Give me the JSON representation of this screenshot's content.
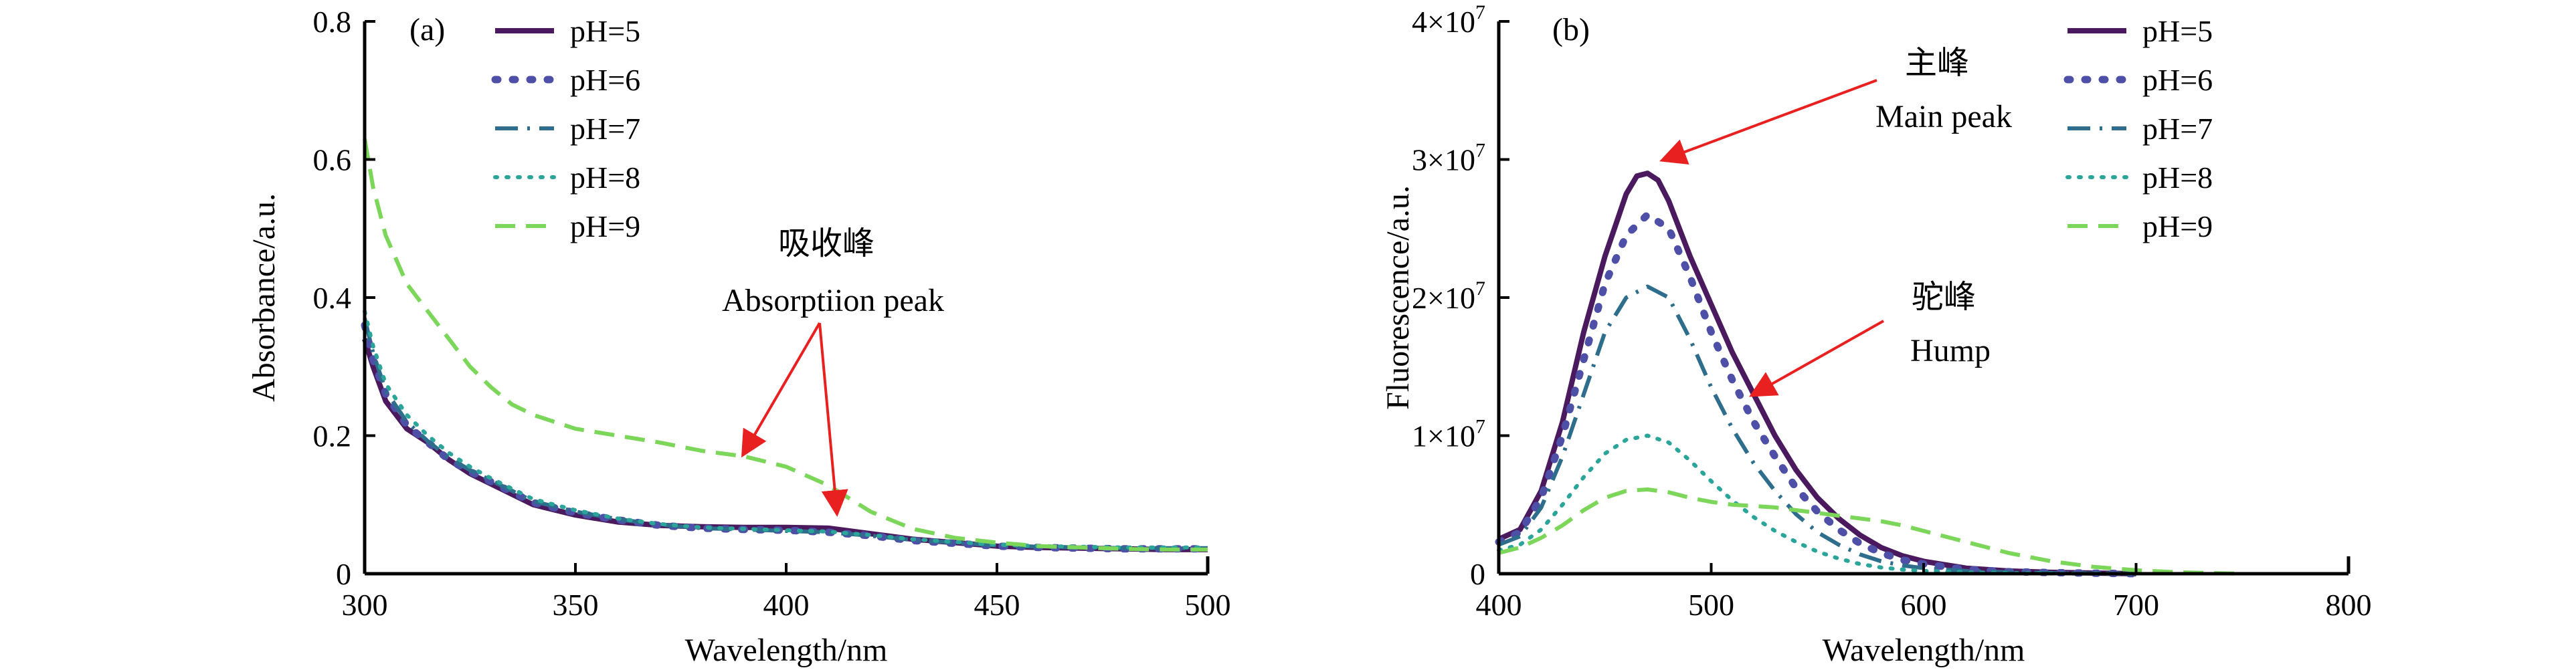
{
  "chart_data": [
    {
      "type": "line",
      "panel_label": "(a)",
      "xlabel": "Wavelength/nm",
      "ylabel": "Absorbance/a.u.",
      "xlim": [
        300,
        500
      ],
      "ylim": [
        0,
        0.8
      ],
      "xticks": [
        "300",
        "350",
        "400",
        "450",
        "500"
      ],
      "yticks": [
        "0",
        "0.2",
        "0.4",
        "0.6",
        "0.8"
      ],
      "legend_position": "top-right",
      "series": [
        {
          "name": "pH=5",
          "color": "#4b1a5e",
          "style": "solid",
          "x": [
            300,
            302,
            305,
            310,
            315,
            320,
            325,
            330,
            335,
            340,
            350,
            360,
            370,
            380,
            390,
            400,
            410,
            420,
            430,
            440,
            450,
            460,
            470,
            480,
            490,
            500
          ],
          "y": [
            0.34,
            0.3,
            0.25,
            0.21,
            0.19,
            0.165,
            0.145,
            0.13,
            0.115,
            0.1,
            0.085,
            0.075,
            0.07,
            0.068,
            0.067,
            0.067,
            0.066,
            0.058,
            0.05,
            0.045,
            0.04,
            0.038,
            0.037,
            0.036,
            0.035,
            0.035
          ]
        },
        {
          "name": "pH=6",
          "color": "#4e4fa6",
          "style": "dotted",
          "x": [
            300,
            302,
            305,
            310,
            315,
            320,
            325,
            330,
            335,
            340,
            350,
            360,
            370,
            380,
            390,
            400,
            410,
            420,
            430,
            440,
            450,
            460,
            470,
            480,
            490,
            500
          ],
          "y": [
            0.36,
            0.31,
            0.26,
            0.215,
            0.19,
            0.165,
            0.148,
            0.133,
            0.118,
            0.103,
            0.088,
            0.078,
            0.07,
            0.066,
            0.064,
            0.063,
            0.06,
            0.055,
            0.048,
            0.044,
            0.04,
            0.038,
            0.037,
            0.036,
            0.036,
            0.036
          ]
        },
        {
          "name": "pH=7",
          "color": "#2e6e8c",
          "style": "dashdot",
          "x": [
            300,
            302,
            305,
            310,
            315,
            320,
            325,
            330,
            335,
            340,
            350,
            360,
            370,
            380,
            390,
            400,
            410,
            420,
            430,
            440,
            450,
            460,
            470,
            480,
            490,
            500
          ],
          "y": [
            0.37,
            0.32,
            0.265,
            0.22,
            0.192,
            0.168,
            0.15,
            0.135,
            0.12,
            0.105,
            0.09,
            0.079,
            0.071,
            0.066,
            0.064,
            0.062,
            0.06,
            0.055,
            0.049,
            0.045,
            0.041,
            0.039,
            0.038,
            0.037,
            0.037,
            0.037
          ]
        },
        {
          "name": "pH=8",
          "color": "#2ba59a",
          "style": "dotted-fine",
          "x": [
            300,
            302,
            305,
            310,
            315,
            320,
            325,
            330,
            335,
            340,
            350,
            360,
            370,
            380,
            390,
            400,
            410,
            420,
            430,
            440,
            450,
            460,
            470,
            480,
            490,
            500
          ],
          "y": [
            0.38,
            0.33,
            0.275,
            0.23,
            0.2,
            0.175,
            0.155,
            0.138,
            0.123,
            0.108,
            0.092,
            0.08,
            0.072,
            0.067,
            0.065,
            0.063,
            0.061,
            0.056,
            0.05,
            0.046,
            0.042,
            0.04,
            0.039,
            0.038,
            0.038,
            0.038
          ]
        },
        {
          "name": "pH=9",
          "color": "#7bd65a",
          "style": "dashed",
          "x": [
            300,
            302,
            305,
            310,
            315,
            320,
            325,
            330,
            335,
            340,
            350,
            360,
            370,
            380,
            390,
            400,
            410,
            420,
            430,
            440,
            450,
            460,
            470,
            480,
            490,
            500
          ],
          "y": [
            0.63,
            0.56,
            0.49,
            0.42,
            0.38,
            0.34,
            0.3,
            0.27,
            0.245,
            0.23,
            0.21,
            0.2,
            0.19,
            0.178,
            0.17,
            0.155,
            0.128,
            0.09,
            0.065,
            0.052,
            0.045,
            0.04,
            0.038,
            0.036,
            0.035,
            0.035
          ]
        }
      ],
      "annotations": [
        {
          "cn": "吸收峰",
          "en": "Absorptiion peak",
          "targets": [
            [
              390,
              0.175
            ],
            [
              412,
              0.09
            ]
          ]
        }
      ]
    },
    {
      "type": "line",
      "panel_label": "(b)",
      "xlabel": "Wavelength/nm",
      "ylabel": "Fluorescence/a.u.",
      "xlim": [
        400,
        800
      ],
      "ylim": [
        0,
        40000000
      ],
      "xticks": [
        "400",
        "500",
        "600",
        "700",
        "800"
      ],
      "yticks": [
        {
          "value": 0,
          "text": "0"
        },
        {
          "value": 10000000,
          "mant": "1",
          "base": "×10",
          "exp": "7"
        },
        {
          "value": 20000000,
          "mant": "2",
          "base": "×10",
          "exp": "7"
        },
        {
          "value": 30000000,
          "mant": "3",
          "base": "×10",
          "exp": "7"
        },
        {
          "value": 40000000,
          "mant": "4",
          "base": "×10",
          "exp": "7"
        }
      ],
      "legend_position": "top-right",
      "series": [
        {
          "name": "pH=5",
          "color": "#4b1a5e",
          "style": "solid",
          "x": [
            400,
            410,
            420,
            430,
            440,
            450,
            460,
            465,
            470,
            475,
            480,
            490,
            500,
            510,
            520,
            530,
            540,
            550,
            560,
            570,
            580,
            590,
            600,
            620,
            640,
            660,
            680,
            700
          ],
          "y": [
            2500000,
            3200000,
            6000000,
            11000000,
            17500000,
            23000000,
            27500000,
            28800000,
            29000000,
            28500000,
            27000000,
            23000000,
            19500000,
            16000000,
            13000000,
            10000000,
            7500000,
            5500000,
            4000000,
            2800000,
            1900000,
            1300000,
            900000,
            400000,
            200000,
            100000,
            50000,
            0
          ]
        },
        {
          "name": "pH=6",
          "color": "#4e4fa6",
          "style": "dotted",
          "x": [
            400,
            410,
            420,
            430,
            440,
            450,
            460,
            470,
            480,
            490,
            500,
            510,
            520,
            530,
            540,
            550,
            560,
            570,
            580,
            590,
            600,
            620,
            640,
            660,
            680,
            700
          ],
          "y": [
            2300000,
            3000000,
            5500000,
            10000000,
            15500000,
            21000000,
            24500000,
            26000000,
            25000000,
            21500000,
            17500000,
            14000000,
            11000000,
            8500000,
            6200000,
            4500000,
            3200000,
            2200000,
            1500000,
            1000000,
            700000,
            300000,
            150000,
            80000,
            40000,
            0
          ]
        },
        {
          "name": "pH=7",
          "color": "#2e6e8c",
          "style": "dashdot",
          "x": [
            400,
            410,
            420,
            430,
            440,
            450,
            460,
            470,
            480,
            490,
            500,
            510,
            520,
            530,
            540,
            550,
            560,
            570,
            580,
            590,
            600,
            620,
            640,
            660,
            680,
            700
          ],
          "y": [
            2100000,
            2700000,
            4800000,
            8500000,
            13000000,
            17500000,
            20000000,
            20800000,
            20000000,
            17000000,
            13500000,
            10500000,
            8000000,
            6000000,
            4300000,
            3000000,
            2100000,
            1400000,
            900000,
            600000,
            400000,
            200000,
            100000,
            50000,
            20000,
            0
          ]
        },
        {
          "name": "pH=8",
          "color": "#2ba59a",
          "style": "dotted-fine",
          "x": [
            400,
            410,
            420,
            430,
            440,
            450,
            460,
            470,
            480,
            490,
            500,
            510,
            520,
            530,
            540,
            550,
            560,
            570,
            580,
            590,
            600,
            620,
            640,
            660,
            680,
            700
          ],
          "y": [
            1700000,
            2100000,
            3200000,
            5000000,
            7000000,
            8700000,
            9700000,
            10000000,
            9500000,
            8200000,
            6700000,
            5300000,
            4100000,
            3100000,
            2300000,
            1600000,
            1100000,
            700000,
            450000,
            300000,
            200000,
            100000,
            50000,
            20000,
            10000,
            0
          ]
        },
        {
          "name": "pH=9",
          "color": "#7bd65a",
          "style": "dashed",
          "x": [
            400,
            410,
            420,
            430,
            440,
            450,
            460,
            470,
            480,
            490,
            500,
            510,
            520,
            530,
            540,
            550,
            560,
            570,
            580,
            590,
            600,
            620,
            640,
            660,
            680,
            700,
            720,
            750
          ],
          "y": [
            1500000,
            1900000,
            2600000,
            3500000,
            4600000,
            5500000,
            6000000,
            6100000,
            5900000,
            5500000,
            5200000,
            5000000,
            4900000,
            4800000,
            4600000,
            4400000,
            4200000,
            4000000,
            3800000,
            3500000,
            3100000,
            2300000,
            1500000,
            900000,
            500000,
            250000,
            100000,
            0
          ]
        }
      ],
      "annotations": [
        {
          "cn": "主峰",
          "en": "Main peak",
          "targets": [
            [
              478,
              30000000
            ]
          ]
        },
        {
          "cn": "驼峰",
          "en": "Hump",
          "targets": [
            [
              520,
              13000000
            ]
          ]
        }
      ]
    }
  ]
}
